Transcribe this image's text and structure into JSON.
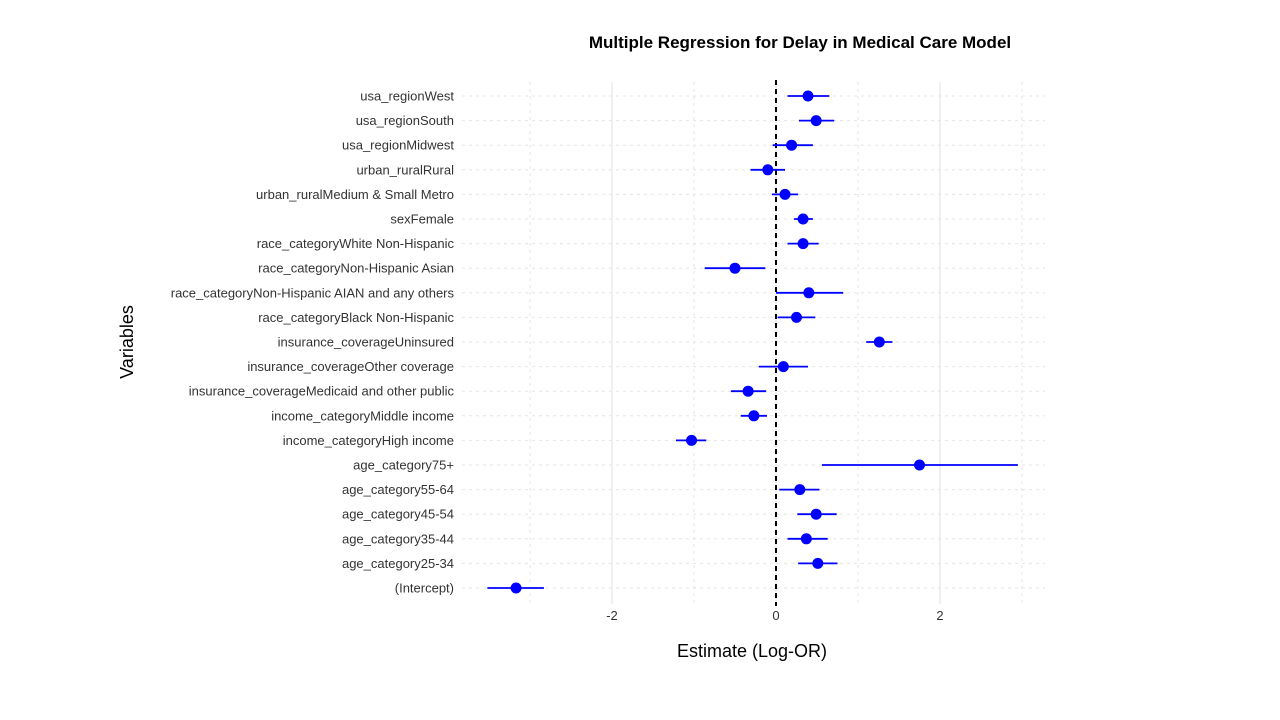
{
  "chart_data": {
    "type": "scatter",
    "subtype": "coefficient-plot",
    "title": "Multiple Regression for Delay in Medical Care Model",
    "xlabel": "Estimate (Log-OR)",
    "ylabel": "Variables",
    "xlim": [
      -3.5,
      3.3
    ],
    "xticks": [
      -2,
      0,
      2
    ],
    "reference_line": 0,
    "grid": true,
    "colors": {
      "point": "#0000ff",
      "interval": "#0000ff",
      "grid": "#e6e6e6",
      "reference": "#000000"
    },
    "variables": [
      {
        "name": "usa_regionWest",
        "estimate": 0.39,
        "low": 0.14,
        "high": 0.65
      },
      {
        "name": "usa_regionSouth",
        "estimate": 0.49,
        "low": 0.28,
        "high": 0.71
      },
      {
        "name": "usa_regionMidwest",
        "estimate": 0.19,
        "low": -0.04,
        "high": 0.45
      },
      {
        "name": "urban_ruralRural",
        "estimate": -0.1,
        "low": -0.31,
        "high": 0.11
      },
      {
        "name": "urban_ruralMedium & Small Metro",
        "estimate": 0.11,
        "low": -0.05,
        "high": 0.27
      },
      {
        "name": "sexFemale",
        "estimate": 0.33,
        "low": 0.22,
        "high": 0.45
      },
      {
        "name": "race_categoryWhite Non-Hispanic",
        "estimate": 0.33,
        "low": 0.14,
        "high": 0.52
      },
      {
        "name": "race_categoryNon-Hispanic Asian",
        "estimate": -0.5,
        "low": -0.87,
        "high": -0.13
      },
      {
        "name": "race_categoryNon-Hispanic AIAN and any others",
        "estimate": 0.4,
        "low": 0.0,
        "high": 0.82
      },
      {
        "name": "race_categoryBlack Non-Hispanic",
        "estimate": 0.25,
        "low": 0.02,
        "high": 0.48
      },
      {
        "name": "insurance_coverageUninsured",
        "estimate": 1.26,
        "low": 1.1,
        "high": 1.42
      },
      {
        "name": "insurance_coverageOther coverage",
        "estimate": 0.09,
        "low": -0.21,
        "high": 0.39
      },
      {
        "name": "insurance_coverageMedicaid and other public",
        "estimate": -0.34,
        "low": -0.55,
        "high": -0.12
      },
      {
        "name": "income_categoryMiddle income",
        "estimate": -0.27,
        "low": -0.43,
        "high": -0.11
      },
      {
        "name": "income_categoryHigh income",
        "estimate": -1.03,
        "low": -1.22,
        "high": -0.85
      },
      {
        "name": "age_category75+",
        "estimate": 1.75,
        "low": 0.56,
        "high": 2.95
      },
      {
        "name": "age_category55-64",
        "estimate": 0.29,
        "low": 0.04,
        "high": 0.53
      },
      {
        "name": "age_category45-54",
        "estimate": 0.49,
        "low": 0.26,
        "high": 0.74
      },
      {
        "name": "age_category35-44",
        "estimate": 0.37,
        "low": 0.14,
        "high": 0.63
      },
      {
        "name": "age_category25-34",
        "estimate": 0.51,
        "low": 0.27,
        "high": 0.75
      },
      {
        "name": "(Intercept)",
        "estimate": -3.17,
        "low": -3.52,
        "high": -2.83
      }
    ]
  }
}
